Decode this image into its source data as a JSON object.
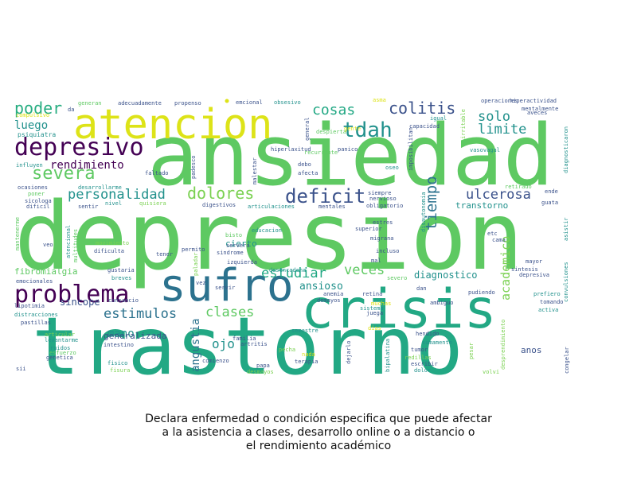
{
  "caption": {
    "line1": "Declara enfermedad o condición especifica que puede afectar",
    "line2": "a la asistencia a clases, desarrollo online o a distancio o",
    "line3": "el rendimiento académico"
  },
  "palette": {
    "dark_purple": "#440154",
    "purple_blue": "#3b528b",
    "blue": "#2c728e",
    "teal": "#21918c",
    "green_teal": "#22a884",
    "sea_green": "#27ad81",
    "green": "#5ec962",
    "lime": "#7ad151",
    "yellow": "#dde318",
    "bright_yellow": "#fde725"
  },
  "words": [
    "trastorno",
    "depresion",
    "ansiedad",
    "crisis",
    "sufro",
    "atencion",
    "problema",
    "depresivo",
    "tdah",
    "deficit",
    "severa",
    "poder",
    "colitis",
    "cosas",
    "dolores",
    "personalidad",
    "estimulos",
    "clases",
    "tiempo",
    "estudiar",
    "ulcerosa",
    "limite",
    "solo",
    "veces",
    "rendimiento",
    "luego",
    "angustia",
    "ojo",
    "mano",
    "academico",
    "ansioso",
    "diagnostico",
    "fibromialgia",
    "sincope",
    "generalizada",
    "transtorno",
    "cierto",
    "psiquiatra",
    "compulsivo",
    "influyen",
    "faltado",
    "ocasiones",
    "poner",
    "sicologa",
    "dificil",
    "mantenerme",
    "veo",
    "atencional",
    "multitudes",
    "emocionales",
    "pastillas",
    "lipotimia",
    "distracciones",
    "articular",
    "levantarme",
    "ruidos",
    "esfuerzo",
    "genetica",
    "sii",
    "generan",
    "adecuadamente",
    "propenso",
    "emcional",
    "obsesivo",
    "asma",
    "igual",
    "operaciones",
    "hiperactividad",
    "mentalmente",
    "aveces",
    "diagnosticaron",
    "irritable",
    "imposibilitan",
    "general",
    "despierta",
    "gente",
    "capacidad",
    "recurrente",
    "hiperlaxitud",
    "panico",
    "vasovagal",
    "malestar",
    "debo",
    "afecta",
    "padesco",
    "oseo",
    "da",
    "desarrollarme",
    "sentir",
    "nivel",
    "quisiera",
    "digestivos",
    "articulaciones",
    "mentales",
    "siempre",
    "nervioso",
    "obligatorio",
    "retirado",
    "ende",
    "guata",
    "estres",
    "superior",
    "servera",
    "dificulta",
    "movimiento",
    "tener",
    "bisto",
    "paladar",
    "izquierda",
    "sindrome",
    "migrana",
    "incluso",
    "etc",
    "cama",
    "asistir",
    "convulsiones",
    "mayor",
    "sintesis",
    "depresiva",
    "gustaria",
    "breves",
    "cansancio",
    "desencadena",
    "mal",
    "severo",
    "dan",
    "prefiero",
    "tomando",
    "activa",
    "pudiendo",
    "demayos",
    "anemia",
    "juega",
    "sistema",
    "muchas",
    "ambiguo",
    "retina",
    "hendido",
    "tumor",
    "sumamente",
    "semestre",
    "familia",
    "artritis",
    "pecha",
    "nada",
    "intestino",
    "fisico",
    "fisura",
    "comienzo",
    "papa",
    "desmayos",
    "terapia",
    "dejarlo",
    "bipalatina",
    "redillas",
    "escribir",
    "dolor",
    "pesar",
    "desprendimiento",
    "congelar",
    "volvi",
    "anos",
    "permito",
    "educacion",
    "dias",
    "disautonomia",
    "vez",
    "servir"
  ]
}
